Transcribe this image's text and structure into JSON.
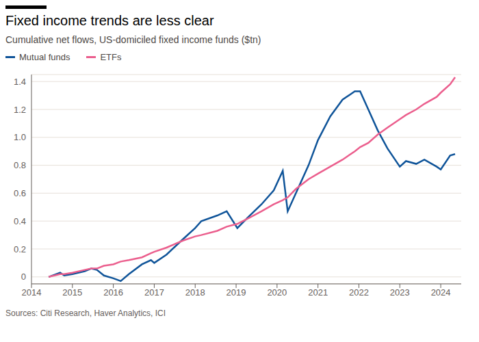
{
  "chart_data": {
    "type": "line",
    "title": "Fixed income trends are less clear",
    "subtitle": "Cumulative net flows, US-domiciled fixed income funds ($tn)",
    "source": "Sources: Citi Research, Haver Analytics, ICI",
    "x": [
      2014.42,
      2014.7,
      2014.8,
      2015.0,
      2015.3,
      2015.46,
      2015.6,
      2015.77,
      2016.0,
      2016.18,
      2016.38,
      2016.7,
      2016.92,
      2017.0,
      2017.3,
      2017.7,
      2018.0,
      2018.15,
      2018.54,
      2018.77,
      2019.03,
      2019.3,
      2019.62,
      2019.92,
      2020.14,
      2020.26,
      2020.46,
      2020.77,
      2021.0,
      2021.3,
      2021.6,
      2021.9,
      2022.03,
      2022.23,
      2022.46,
      2022.7,
      2023.0,
      2023.15,
      2023.4,
      2023.6,
      2023.9,
      2024.0,
      2024.23,
      2024.35
    ],
    "series": [
      {
        "name": "Mutual funds",
        "color": "#0f5499",
        "values": [
          0,
          0.03,
          0.01,
          0.02,
          0.04,
          0.06,
          0.05,
          0.01,
          -0.01,
          -0.03,
          0.02,
          0.09,
          0.12,
          0.1,
          0.16,
          0.27,
          0.35,
          0.4,
          0.44,
          0.47,
          0.35,
          0.43,
          0.52,
          0.62,
          0.76,
          0.47,
          0.6,
          0.8,
          0.98,
          1.15,
          1.27,
          1.33,
          1.33,
          1.2,
          1.05,
          0.92,
          0.79,
          0.83,
          0.81,
          0.84,
          0.79,
          0.77,
          0.87,
          0.88
        ]
      },
      {
        "name": "ETFs",
        "color": "#eb5e8d",
        "values": [
          0,
          0.02,
          0.02,
          0.03,
          0.05,
          0.06,
          0.06,
          0.08,
          0.09,
          0.11,
          0.12,
          0.14,
          0.17,
          0.18,
          0.21,
          0.26,
          0.29,
          0.3,
          0.33,
          0.36,
          0.38,
          0.42,
          0.47,
          0.52,
          0.55,
          0.57,
          0.63,
          0.7,
          0.74,
          0.79,
          0.84,
          0.9,
          0.93,
          0.96,
          1.02,
          1.07,
          1.13,
          1.16,
          1.2,
          1.24,
          1.29,
          1.32,
          1.38,
          1.43
        ]
      }
    ],
    "xlim": [
      2014,
      2024.5
    ],
    "xticks": [
      2014,
      2015,
      2016,
      2017,
      2018,
      2019,
      2020,
      2021,
      2022,
      2023,
      2024
    ],
    "ylim": [
      -0.05,
      1.45
    ],
    "yticks": [
      0,
      0.2,
      0.4,
      0.6,
      0.8,
      {
        "value": 1,
        "label": "1.0"
      },
      1.2,
      1.4
    ],
    "grid": true
  }
}
